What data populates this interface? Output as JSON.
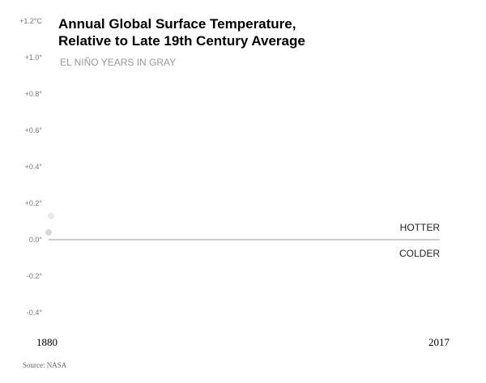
{
  "chart_data": {
    "type": "scatter",
    "title_lines": [
      "Annual Global Surface Temperature,",
      "Relative to Late 19th Century Average"
    ],
    "subtitle": "EL NIÑO YEARS IN GRAY",
    "y_ticks": [
      "+1.2°C",
      "+1.0°",
      "+0.8°",
      "+0.6°",
      "+0.4°",
      "+0.2°",
      "0.0°",
      "-0.2°",
      "-0.4°"
    ],
    "y_tick_values": [
      1.2,
      1.0,
      0.8,
      0.6,
      0.4,
      0.2,
      0.0,
      -0.2,
      -0.4
    ],
    "x_ticks": [
      "1880",
      "2017"
    ],
    "xlim": [
      1880,
      2017
    ],
    "ylim": [
      -0.4,
      1.2
    ],
    "above_label": "HOTTER",
    "below_label": "COLDER",
    "source": "Source: NASA",
    "series": [
      {
        "values": [
          {
            "x": 1880,
            "y": 0.13,
            "el_nino": false
          },
          {
            "x": 1880,
            "y": 0.04,
            "el_nino": true
          }
        ]
      }
    ],
    "colors": {
      "normal": "#e8e8e8",
      "el_nino": "#d8d8d8",
      "axis": "#999999"
    }
  }
}
